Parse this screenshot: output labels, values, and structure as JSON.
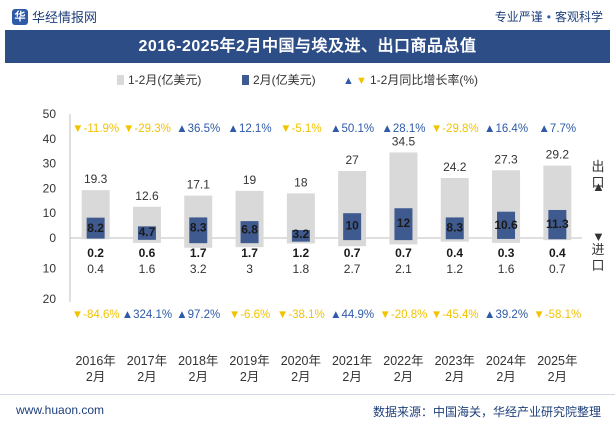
{
  "header": {
    "logo_text": "华经情报网",
    "logo_mark": "华",
    "slogan_left": "专业严谨",
    "slogan_right": "客观科学"
  },
  "chart_title": "2016-2025年2月中国与埃及进、出口商品总值",
  "legend": {
    "cumulative": "1-2月(亿美元)",
    "february": "2月(亿美元)",
    "growth": "1-2月同比增长率(%)"
  },
  "side_labels": {
    "export": "出口",
    "import": "进口"
  },
  "footer": {
    "url": "www.huaon.com",
    "source": "数据来源：中国海关，华经产业研究院整理"
  },
  "colors": {
    "cumulative_bar": "#d9d9d9",
    "february_bar": "#3f5a8f",
    "growth_up": "#2e5aa8",
    "growth_down": "#f2c300",
    "title_bg": "#2d4d87"
  },
  "chart_data": {
    "type": "bar",
    "categories": [
      "2016年\n2月",
      "2017年\n2月",
      "2018年\n2月",
      "2019年\n2月",
      "2020年\n2月",
      "2021年\n2月",
      "2022年\n2月",
      "2023年\n2月",
      "2024年\n2月",
      "2025年\n2月"
    ],
    "y_ticks_top": [
      "50",
      "40",
      "30",
      "20",
      "10",
      "0"
    ],
    "y_ticks_bottom": [
      "10",
      "20"
    ],
    "ylim_export": [
      0,
      50
    ],
    "ylim_import": [
      0,
      20
    ],
    "export_cumulative": [
      19.3,
      12.6,
      17.1,
      19,
      18,
      27,
      34.5,
      24.2,
      27.3,
      29.2
    ],
    "export_cumulative_labels": [
      "19.3",
      "12.6",
      "17.1",
      "19",
      "18",
      "27",
      "34.5",
      "24.2",
      "27.3",
      "29.2"
    ],
    "export_february": [
      8.2,
      4.7,
      8.3,
      6.8,
      3.2,
      10,
      12,
      8.3,
      10.6,
      11.3
    ],
    "export_february_labels": [
      "8.2",
      "4.7",
      "8.3",
      "6.8",
      "3.2",
      "10",
      "12",
      "8.3",
      "10.6",
      "11.3"
    ],
    "export_growth_labels": [
      "-11.9%",
      "-29.3%",
      "36.5%",
      "12.1%",
      "-5.1%",
      "50.1%",
      "28.1%",
      "-29.8%",
      "16.4%",
      "7.7%"
    ],
    "import_cumulative": [
      0.4,
      1.6,
      3.2,
      3,
      1.8,
      2.7,
      2.1,
      1.2,
      1.6,
      0.7
    ],
    "import_cumulative_labels": [
      "0.4",
      "1.6",
      "3.2",
      "3",
      "1.8",
      "2.7",
      "2.1",
      "1.2",
      "1.6",
      "0.7"
    ],
    "import_february": [
      0.2,
      0.6,
      1.7,
      1.7,
      1.2,
      0.7,
      0.7,
      0.4,
      0.3,
      0.4
    ],
    "import_february_labels": [
      "0.2",
      "0.6",
      "1.7",
      "1.7",
      "1.2",
      "0.7",
      "0.7",
      "0.4",
      "0.3",
      "0.4"
    ],
    "import_growth_labels": [
      "-84.6%",
      "324.1%",
      "97.2%",
      "-6.6%",
      "-38.1%",
      "44.9%",
      "-20.8%",
      "-45.4%",
      "39.2%",
      "-58.1%"
    ]
  }
}
